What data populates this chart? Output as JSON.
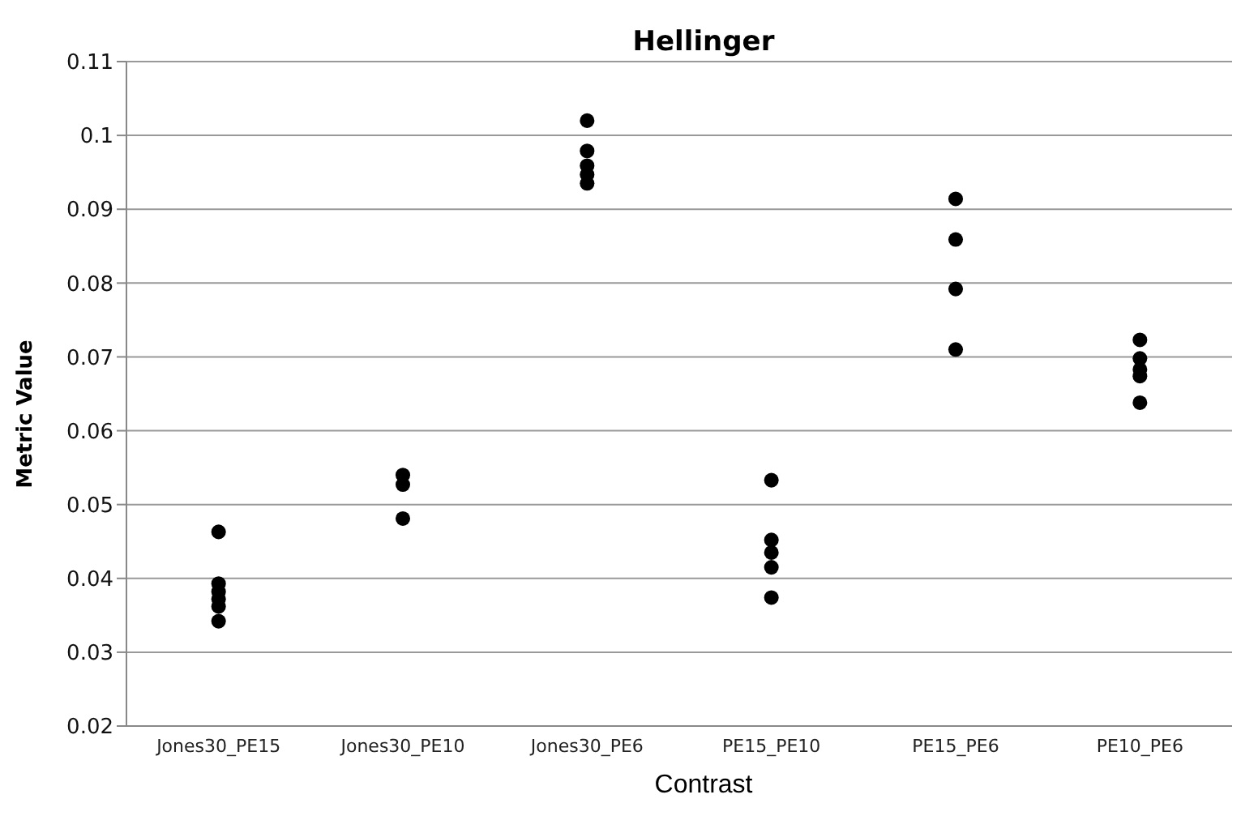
{
  "chart_data": {
    "type": "scatter",
    "title": "Hellinger",
    "xlabel": "Contrast",
    "ylabel": "Metric Value",
    "categories": [
      "Jones30_PE15",
      "Jones30_PE10",
      "Jones30_PE6",
      "PE15_PE10",
      "PE15_PE6",
      "PE10_PE6"
    ],
    "series": [
      {
        "color": "#000000",
        "x": [
          "Jones30_PE15",
          "Jones30_PE15",
          "Jones30_PE15",
          "Jones30_PE15",
          "Jones30_PE15",
          "Jones30_PE15",
          "Jones30_PE10",
          "Jones30_PE10",
          "Jones30_PE10",
          "Jones30_PE6",
          "Jones30_PE6",
          "Jones30_PE6",
          "Jones30_PE6",
          "Jones30_PE6",
          "PE15_PE10",
          "PE15_PE10",
          "PE15_PE10",
          "PE15_PE10",
          "PE15_PE10",
          "PE15_PE6",
          "PE15_PE6",
          "PE15_PE6",
          "PE15_PE6",
          "PE10_PE6",
          "PE10_PE6",
          "PE10_PE6",
          "PE10_PE6",
          "PE10_PE6"
        ],
        "values": [
          0.0463,
          0.0393,
          0.0382,
          0.0372,
          0.0362,
          0.0342,
          0.054,
          0.0527,
          0.0481,
          0.102,
          0.0979,
          0.0959,
          0.0947,
          0.0935,
          0.0533,
          0.0452,
          0.0435,
          0.0415,
          0.0374,
          0.0914,
          0.0859,
          0.0792,
          0.071,
          0.0723,
          0.0698,
          0.0683,
          0.0674,
          0.0638
        ]
      }
    ],
    "ylim": [
      0.02,
      0.11
    ],
    "yticks": [
      0.02,
      0.03,
      0.04,
      0.05,
      0.06,
      0.07,
      0.08,
      0.09,
      {
        "value": 0.1,
        "label": "0.1"
      },
      0.11
    ],
    "grid": "y",
    "marker": "circle",
    "legend": false
  }
}
